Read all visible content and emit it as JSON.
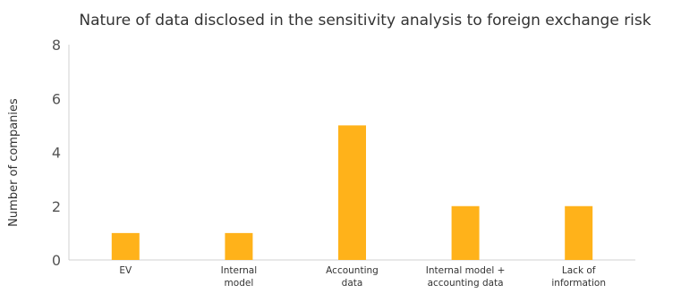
{
  "chart_data": {
    "type": "bar",
    "title": "Nature of data disclosed in the sensitivity analysis to foreign exchange risk",
    "xlabel": "",
    "ylabel": "Number of companies",
    "categories": [
      [
        "EV"
      ],
      [
        "Internal",
        "model"
      ],
      [
        "Accounting",
        "data"
      ],
      [
        "Internal model +",
        "accounting data"
      ],
      [
        "Lack of",
        "information"
      ]
    ],
    "values": [
      1,
      1,
      5,
      2,
      2
    ],
    "ylim": [
      0,
      8
    ],
    "yticks": [
      0,
      2,
      4,
      6,
      8
    ],
    "grid": false,
    "bar_color": "#FFB21A"
  }
}
